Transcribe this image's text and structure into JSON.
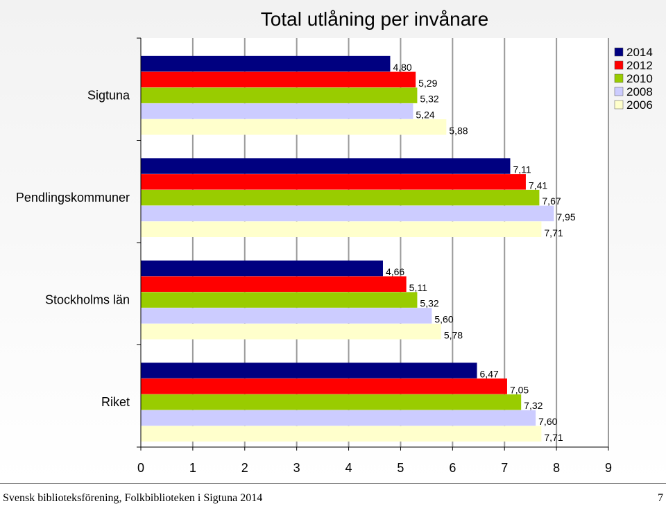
{
  "chart_data": {
    "type": "bar",
    "orientation": "horizontal",
    "title": "Total utlåning per invånare",
    "categories": [
      "Sigtuna",
      "Pendlingskommuner",
      "Stockholms län",
      "Riket"
    ],
    "series": [
      {
        "name": "2014",
        "color": "#000080",
        "values": [
          4.8,
          7.11,
          4.66,
          6.47
        ],
        "labels": [
          "4,80",
          "7,11",
          "4,66",
          "6,47"
        ]
      },
      {
        "name": "2012",
        "color": "#ff0000",
        "values": [
          5.29,
          7.41,
          5.11,
          7.05
        ],
        "labels": [
          "5,29",
          "7,41",
          "5,11",
          "7,05"
        ]
      },
      {
        "name": "2010",
        "color": "#99cc00",
        "values": [
          5.32,
          7.67,
          5.32,
          7.32
        ],
        "labels": [
          "5,32",
          "7,67",
          "5,32",
          "7,32"
        ]
      },
      {
        "name": "2008",
        "color": "#ccccff",
        "values": [
          5.24,
          7.95,
          5.6,
          7.6
        ],
        "labels": [
          "5,24",
          "7,95",
          "5,60",
          "7,60"
        ]
      },
      {
        "name": "2006",
        "color": "#ffffcc",
        "values": [
          5.88,
          7.71,
          5.78,
          7.71
        ],
        "labels": [
          "5,88",
          "7,71",
          "5,78",
          "7,71"
        ]
      }
    ],
    "xlim": [
      0,
      9
    ],
    "xticks": [
      "0",
      "1",
      "2",
      "3",
      "4",
      "5",
      "6",
      "7",
      "8",
      "9"
    ],
    "grid": true,
    "legend_position": "top-right"
  },
  "footer": {
    "source": "Svensk biblioteksförening, Folkbiblioteken i Sigtuna 2014",
    "page_number": "7"
  }
}
